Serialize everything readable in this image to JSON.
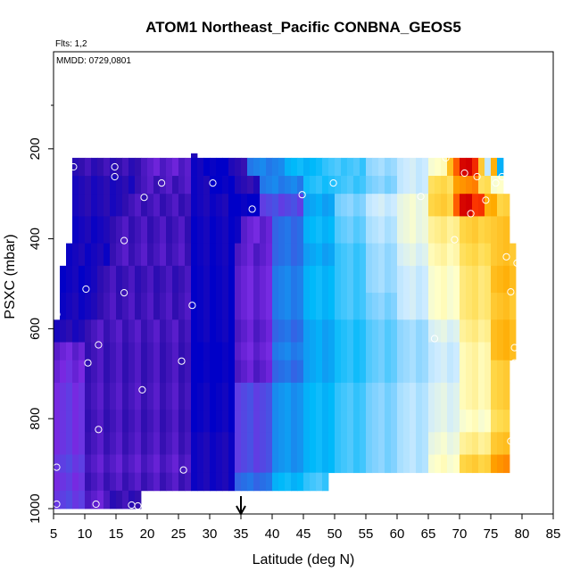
{
  "chart_data": {
    "type": "heatmap",
    "title": "ATOM1 Northeast_Pacific CONBNA_GEOS5",
    "annotations": {
      "flights": "Flts: 1,2",
      "dates": "MMDD: 0729,0801"
    },
    "xlabel": "Latitude (deg N)",
    "ylabel": "PSXC (mbar)",
    "xlim": [
      5,
      85
    ],
    "ylim": [
      1000,
      0
    ],
    "x_ticks": [
      "5",
      "10",
      "15",
      "20",
      "25",
      "30",
      "35",
      "40",
      "45",
      "50",
      "55",
      "60",
      "65",
      "70",
      "75",
      "80",
      "85"
    ],
    "y_ticks": [
      "200",
      "400",
      "600",
      "800",
      "1000"
    ],
    "arrow_marker_latitude": 35,
    "rows": [
      {
        "p_top": 210,
        "p_bot": 220,
        "x0": 27,
        "x1": 28,
        "segments": [
          [
            27,
            28,
            -0.9
          ]
        ]
      },
      {
        "p_top": 220,
        "p_bot": 260,
        "x0": 8,
        "x1": 77,
        "segments": [
          [
            8,
            19,
            -0.88
          ],
          [
            19,
            27,
            -0.82
          ],
          [
            27,
            29,
            -0.95
          ],
          [
            29,
            31,
            -0.98
          ],
          [
            31,
            33,
            -1.0
          ],
          [
            33,
            36,
            -0.9
          ],
          [
            36,
            42,
            -0.55
          ],
          [
            42,
            48,
            -0.4
          ],
          [
            48,
            55,
            -0.3
          ],
          [
            55,
            60,
            -0.15
          ],
          [
            60,
            65,
            -0.05
          ],
          [
            65,
            68,
            0.1
          ],
          [
            68,
            69,
            0.45
          ],
          [
            69,
            70,
            0.7
          ],
          [
            70,
            72,
            1.0
          ],
          [
            72,
            73,
            0.85
          ],
          [
            73,
            74,
            0.4
          ],
          [
            74,
            75,
            -0.05
          ],
          [
            75,
            76,
            0.5
          ],
          [
            76,
            77,
            -0.4
          ]
        ]
      },
      {
        "p_top": 260,
        "p_bot": 300,
        "x0": 8,
        "x1": 77,
        "segments": [
          [
            8,
            18,
            -0.92
          ],
          [
            18,
            27,
            -0.85
          ],
          [
            27,
            30,
            -0.95
          ],
          [
            30,
            34,
            -1.0
          ],
          [
            34,
            38,
            -0.9
          ],
          [
            38,
            45,
            -0.55
          ],
          [
            45,
            50,
            -0.35
          ],
          [
            50,
            55,
            -0.3
          ],
          [
            55,
            60,
            -0.2
          ],
          [
            60,
            65,
            -0.05
          ],
          [
            65,
            69,
            0.3
          ],
          [
            69,
            71,
            0.55
          ],
          [
            71,
            73,
            0.6
          ],
          [
            73,
            75,
            0.3
          ],
          [
            75,
            77,
            0.1
          ]
        ]
      },
      {
        "p_top": 300,
        "p_bot": 350,
        "x0": 8,
        "x1": 78,
        "segments": [
          [
            8,
            16,
            -0.92
          ],
          [
            16,
            27,
            -0.86
          ],
          [
            27,
            33,
            -0.95
          ],
          [
            33,
            38,
            -1.0
          ],
          [
            38,
            45,
            -0.7
          ],
          [
            45,
            50,
            -0.45
          ],
          [
            50,
            55,
            -0.2
          ],
          [
            55,
            60,
            -0.05
          ],
          [
            60,
            65,
            0.05
          ],
          [
            65,
            69,
            0.35
          ],
          [
            69,
            70,
            0.7
          ],
          [
            70,
            72,
            1.0
          ],
          [
            72,
            74,
            0.8
          ],
          [
            74,
            76,
            0.5
          ],
          [
            76,
            78,
            0.35
          ]
        ]
      },
      {
        "p_top": 350,
        "p_bot": 410,
        "x0": 8,
        "x1": 78,
        "segments": [
          [
            8,
            14,
            -0.95
          ],
          [
            14,
            27,
            -0.86
          ],
          [
            27,
            35,
            -0.97
          ],
          [
            35,
            40,
            -0.8
          ],
          [
            40,
            45,
            -0.6
          ],
          [
            45,
            50,
            -0.4
          ],
          [
            50,
            55,
            -0.25
          ],
          [
            55,
            60,
            -0.1
          ],
          [
            60,
            65,
            0.05
          ],
          [
            65,
            70,
            0.2
          ],
          [
            70,
            75,
            0.35
          ],
          [
            75,
            78,
            0.4
          ]
        ]
      },
      {
        "p_top": 410,
        "p_bot": 460,
        "x0": 7,
        "x1": 79,
        "segments": [
          [
            7,
            14,
            -0.95
          ],
          [
            14,
            27,
            -0.85
          ],
          [
            27,
            34,
            -0.97
          ],
          [
            34,
            40,
            -0.82
          ],
          [
            40,
            45,
            -0.6
          ],
          [
            45,
            50,
            -0.45
          ],
          [
            50,
            55,
            -0.3
          ],
          [
            55,
            60,
            -0.15
          ],
          [
            60,
            65,
            0.0
          ],
          [
            65,
            70,
            0.15
          ],
          [
            70,
            75,
            0.3
          ],
          [
            75,
            79,
            0.4
          ]
        ]
      },
      {
        "p_top": 460,
        "p_bot": 520,
        "x0": 6,
        "x1": 79,
        "segments": [
          [
            6,
            12,
            -0.97
          ],
          [
            12,
            27,
            -0.87
          ],
          [
            27,
            34,
            -0.98
          ],
          [
            34,
            40,
            -0.8
          ],
          [
            40,
            45,
            -0.55
          ],
          [
            45,
            50,
            -0.4
          ],
          [
            50,
            55,
            -0.3
          ],
          [
            55,
            60,
            -0.15
          ],
          [
            60,
            65,
            -0.05
          ],
          [
            65,
            70,
            0.1
          ],
          [
            70,
            75,
            0.25
          ],
          [
            75,
            79,
            0.45
          ]
        ]
      },
      {
        "p_top": 520,
        "p_bot": 580,
        "x0": 6,
        "x1": 79,
        "segments": [
          [
            6,
            12,
            -0.95
          ],
          [
            12,
            27,
            -0.86
          ],
          [
            27,
            34,
            -0.98
          ],
          [
            34,
            40,
            -0.8
          ],
          [
            40,
            45,
            -0.55
          ],
          [
            45,
            50,
            -0.4
          ],
          [
            50,
            55,
            -0.3
          ],
          [
            55,
            60,
            -0.2
          ],
          [
            60,
            65,
            -0.05
          ],
          [
            65,
            70,
            0.1
          ],
          [
            70,
            75,
            0.25
          ],
          [
            75,
            79,
            0.4
          ]
        ]
      },
      {
        "p_top": 580,
        "p_bot": 630,
        "x0": 5,
        "x1": 79,
        "segments": [
          [
            5,
            10,
            -0.92
          ],
          [
            10,
            27,
            -0.85
          ],
          [
            27,
            34,
            -0.98
          ],
          [
            34,
            40,
            -0.82
          ],
          [
            40,
            45,
            -0.6
          ],
          [
            45,
            50,
            -0.45
          ],
          [
            50,
            55,
            -0.35
          ],
          [
            55,
            60,
            -0.25
          ],
          [
            60,
            65,
            -0.15
          ],
          [
            65,
            70,
            0.0
          ],
          [
            70,
            75,
            0.2
          ],
          [
            75,
            79,
            0.45
          ]
        ]
      },
      {
        "p_top": 630,
        "p_bot": 670,
        "x0": 5,
        "x1": 79,
        "segments": [
          [
            5,
            10,
            -0.8
          ],
          [
            10,
            27,
            -0.86
          ],
          [
            27,
            34,
            -1.0
          ],
          [
            34,
            40,
            -0.8
          ],
          [
            40,
            45,
            -0.55
          ],
          [
            45,
            50,
            -0.45
          ],
          [
            50,
            55,
            -0.35
          ],
          [
            55,
            60,
            -0.25
          ],
          [
            60,
            65,
            -0.15
          ],
          [
            65,
            70,
            -0.05
          ],
          [
            70,
            75,
            0.15
          ],
          [
            75,
            79,
            0.45
          ]
        ]
      },
      {
        "p_top": 670,
        "p_bot": 720,
        "x0": 5,
        "x1": 78,
        "segments": [
          [
            5,
            10,
            -0.78
          ],
          [
            10,
            27,
            -0.86
          ],
          [
            27,
            34,
            -1.0
          ],
          [
            34,
            40,
            -0.82
          ],
          [
            40,
            45,
            -0.6
          ],
          [
            45,
            50,
            -0.45
          ],
          [
            50,
            55,
            -0.35
          ],
          [
            55,
            60,
            -0.25
          ],
          [
            60,
            65,
            -0.15
          ],
          [
            65,
            70,
            -0.05
          ],
          [
            70,
            75,
            0.15
          ],
          [
            75,
            78,
            0.35
          ]
        ]
      },
      {
        "p_top": 720,
        "p_bot": 780,
        "x0": 5,
        "x1": 78,
        "segments": [
          [
            5,
            10,
            -0.75
          ],
          [
            10,
            27,
            -0.85
          ],
          [
            27,
            34,
            -0.98
          ],
          [
            34,
            40,
            -0.7
          ],
          [
            40,
            45,
            -0.5
          ],
          [
            45,
            50,
            -0.4
          ],
          [
            50,
            55,
            -0.3
          ],
          [
            55,
            60,
            -0.2
          ],
          [
            60,
            65,
            -0.1
          ],
          [
            65,
            70,
            0.0
          ],
          [
            70,
            75,
            0.15
          ],
          [
            75,
            78,
            0.35
          ]
        ]
      },
      {
        "p_top": 780,
        "p_bot": 830,
        "x0": 5,
        "x1": 78,
        "segments": [
          [
            5,
            10,
            -0.75
          ],
          [
            10,
            27,
            -0.86
          ],
          [
            27,
            34,
            -0.98
          ],
          [
            34,
            40,
            -0.7
          ],
          [
            40,
            45,
            -0.5
          ],
          [
            45,
            50,
            -0.4
          ],
          [
            50,
            55,
            -0.3
          ],
          [
            55,
            60,
            -0.2
          ],
          [
            60,
            65,
            -0.1
          ],
          [
            65,
            70,
            0.0
          ],
          [
            70,
            75,
            0.1
          ],
          [
            75,
            78,
            0.3
          ]
        ]
      },
      {
        "p_top": 830,
        "p_bot": 880,
        "x0": 5,
        "x1": 78,
        "segments": [
          [
            5,
            10,
            -0.75
          ],
          [
            10,
            27,
            -0.85
          ],
          [
            27,
            34,
            -0.95
          ],
          [
            34,
            40,
            -0.7
          ],
          [
            40,
            45,
            -0.5
          ],
          [
            45,
            50,
            -0.4
          ],
          [
            50,
            55,
            -0.3
          ],
          [
            55,
            60,
            -0.2
          ],
          [
            60,
            65,
            -0.1
          ],
          [
            65,
            70,
            0.05
          ],
          [
            70,
            75,
            0.2
          ],
          [
            75,
            78,
            0.4
          ]
        ]
      },
      {
        "p_top": 880,
        "p_bot": 920,
        "x0": 5,
        "x1": 78,
        "segments": [
          [
            5,
            10,
            -0.72
          ],
          [
            10,
            27,
            -0.83
          ],
          [
            27,
            34,
            -0.95
          ],
          [
            34,
            40,
            -0.7
          ],
          [
            40,
            45,
            -0.5
          ],
          [
            45,
            50,
            -0.4
          ],
          [
            50,
            55,
            -0.3
          ],
          [
            55,
            60,
            -0.2
          ],
          [
            60,
            65,
            -0.1
          ],
          [
            65,
            70,
            0.1
          ],
          [
            70,
            75,
            0.35
          ],
          [
            75,
            78,
            0.55
          ]
        ]
      },
      {
        "p_top": 920,
        "p_bot": 960,
        "x0": 5,
        "x1": 49,
        "segments": [
          [
            5,
            10,
            -0.75
          ],
          [
            10,
            27,
            -0.85
          ],
          [
            27,
            34,
            -0.95
          ],
          [
            34,
            40,
            -0.6
          ],
          [
            40,
            45,
            -0.4
          ],
          [
            45,
            49,
            -0.3
          ]
        ]
      },
      {
        "p_top": 960,
        "p_bot": 1000,
        "x0": 5,
        "x1": 19,
        "segments": [
          [
            5,
            10,
            -0.72
          ],
          [
            10,
            14,
            -0.82
          ],
          [
            14,
            19,
            -0.88
          ]
        ]
      }
    ],
    "sample_points": [
      [
        27.8,
        200
      ],
      [
        8.2,
        240
      ],
      [
        14.8,
        240
      ],
      [
        14.8,
        262
      ],
      [
        22.3,
        276
      ],
      [
        19.5,
        308
      ],
      [
        30.5,
        276
      ],
      [
        36.8,
        334
      ],
      [
        44.8,
        302
      ],
      [
        49.8,
        276
      ],
      [
        63.8,
        306
      ],
      [
        67.8,
        220
      ],
      [
        70.8,
        254
      ],
      [
        72.8,
        262
      ],
      [
        74.2,
        314
      ],
      [
        71.8,
        344
      ],
      [
        76.8,
        262
      ],
      [
        75.8,
        276
      ],
      [
        69.2,
        402
      ],
      [
        77.5,
        440
      ],
      [
        79.2,
        454
      ],
      [
        16.3,
        404
      ],
      [
        10.2,
        512
      ],
      [
        16.3,
        520
      ],
      [
        27.2,
        548
      ],
      [
        5.5,
        568
      ],
      [
        12.2,
        636
      ],
      [
        10.5,
        676
      ],
      [
        25.5,
        672
      ],
      [
        19.2,
        736
      ],
      [
        78.2,
        518
      ],
      [
        66.0,
        622
      ],
      [
        78.8,
        642
      ],
      [
        78.8,
        676
      ],
      [
        12.2,
        824
      ],
      [
        78.2,
        850
      ],
      [
        78.8,
        900
      ],
      [
        5.5,
        908
      ],
      [
        25.8,
        914
      ],
      [
        5.5,
        990
      ],
      [
        11.8,
        990
      ],
      [
        17.5,
        992
      ],
      [
        18.5,
        994
      ]
    ]
  }
}
